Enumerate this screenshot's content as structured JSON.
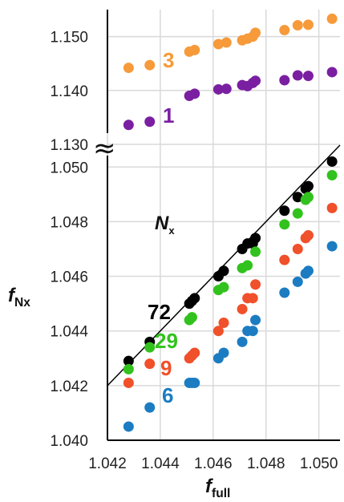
{
  "chart_data": [
    {
      "type": "scatter",
      "title": "",
      "xlabel": "",
      "ylabel": "",
      "xlim": [
        1.042,
        1.0508
      ],
      "ylim": [
        1.13,
        1.155
      ],
      "ytick_labels": [
        "1.130",
        "1.140",
        "1.150"
      ],
      "grid": true,
      "series": [
        {
          "name": "3",
          "color": "#F79A3A",
          "points": [
            [
              1.0428,
              1.1442
            ],
            [
              1.0436,
              1.1447
            ],
            [
              1.0451,
              1.1472
            ],
            [
              1.0453,
              1.1475
            ],
            [
              1.0462,
              1.1486
            ],
            [
              1.0465,
              1.1489
            ],
            [
              1.0471,
              1.1493
            ],
            [
              1.0473,
              1.1496
            ],
            [
              1.0475,
              1.15
            ],
            [
              1.0476,
              1.1507
            ],
            [
              1.0487,
              1.1512
            ],
            [
              1.0492,
              1.1521
            ],
            [
              1.0496,
              1.1522
            ],
            [
              1.0505,
              1.1533
            ]
          ]
        },
        {
          "name": "1",
          "color": "#7B1FA2",
          "points": [
            [
              1.0428,
              1.1336
            ],
            [
              1.0436,
              1.1342
            ],
            [
              1.0451,
              1.139
            ],
            [
              1.0453,
              1.1394
            ],
            [
              1.0462,
              1.1402
            ],
            [
              1.0465,
              1.1403
            ],
            [
              1.0471,
              1.141
            ],
            [
              1.0473,
              1.1408
            ],
            [
              1.0475,
              1.1414
            ],
            [
              1.0476,
              1.1418
            ],
            [
              1.0487,
              1.1419
            ],
            [
              1.0492,
              1.1428
            ],
            [
              1.0496,
              1.1427
            ],
            [
              1.0505,
              1.1434
            ]
          ]
        }
      ]
    },
    {
      "type": "scatter",
      "title": "",
      "xlabel": "f_full",
      "ylabel": "f_Nx",
      "xlim": [
        1.042,
        1.0508
      ],
      "ylim": [
        1.04,
        1.0508
      ],
      "xtick_labels": [
        "1.042",
        "1.044",
        "1.046",
        "1.048",
        "1.050"
      ],
      "ytick_labels": [
        "1.040",
        "1.042",
        "1.044",
        "1.046",
        "1.048",
        "1.050"
      ],
      "grid": true,
      "annotation": "N",
      "annotation_sub": "x",
      "reference_line": {
        "type": "y = x"
      },
      "series": [
        {
          "name": "72",
          "color": "#000000",
          "points": [
            [
              1.0428,
              1.0429
            ],
            [
              1.0436,
              1.0436
            ],
            [
              1.0451,
              1.045
            ],
            [
              1.0452,
              1.0451
            ],
            [
              1.0453,
              1.0452
            ],
            [
              1.0462,
              1.046
            ],
            [
              1.0464,
              1.0462
            ],
            [
              1.0471,
              1.047
            ],
            [
              1.0473,
              1.0472
            ],
            [
              1.0475,
              1.0472
            ],
            [
              1.0476,
              1.0474
            ],
            [
              1.0487,
              1.0484
            ],
            [
              1.0492,
              1.0489
            ],
            [
              1.0495,
              1.0492
            ],
            [
              1.0496,
              1.0493
            ],
            [
              1.0505,
              1.0502
            ]
          ]
        },
        {
          "name": "29",
          "color": "#32C21D",
          "points": [
            [
              1.0428,
              1.0426
            ],
            [
              1.0436,
              1.0434
            ],
            [
              1.0451,
              1.0444
            ],
            [
              1.0452,
              1.0445
            ],
            [
              1.0462,
              1.0455
            ],
            [
              1.0464,
              1.0456
            ],
            [
              1.0471,
              1.0463
            ],
            [
              1.0473,
              1.0464
            ],
            [
              1.0476,
              1.0469
            ],
            [
              1.0487,
              1.0479
            ],
            [
              1.0492,
              1.0483
            ],
            [
              1.0495,
              1.0488
            ],
            [
              1.0496,
              1.0489
            ],
            [
              1.0505,
              1.0497
            ]
          ]
        },
        {
          "name": "9",
          "color": "#F0502A",
          "points": [
            [
              1.0428,
              1.0421
            ],
            [
              1.0436,
              1.0428
            ],
            [
              1.0451,
              1.043
            ],
            [
              1.0452,
              1.0431
            ],
            [
              1.0453,
              1.0432
            ],
            [
              1.0462,
              1.044
            ],
            [
              1.0464,
              1.0443
            ],
            [
              1.0471,
              1.0448
            ],
            [
              1.0473,
              1.0452
            ],
            [
              1.0475,
              1.0452
            ],
            [
              1.0476,
              1.0457
            ],
            [
              1.0487,
              1.0466
            ],
            [
              1.0492,
              1.047
            ],
            [
              1.0495,
              1.0474
            ],
            [
              1.0496,
              1.0475
            ],
            [
              1.0505,
              1.0485
            ]
          ]
        },
        {
          "name": "6",
          "color": "#1B7CC2",
          "points": [
            [
              1.0428,
              1.0405
            ],
            [
              1.0436,
              1.0412
            ],
            [
              1.0451,
              1.0421
            ],
            [
              1.0452,
              1.0421
            ],
            [
              1.0453,
              1.0421
            ],
            [
              1.0462,
              1.043
            ],
            [
              1.0464,
              1.0432
            ],
            [
              1.0471,
              1.0436
            ],
            [
              1.0473,
              1.044
            ],
            [
              1.0475,
              1.044
            ],
            [
              1.0476,
              1.0444
            ],
            [
              1.0487,
              1.0454
            ],
            [
              1.0492,
              1.0458
            ],
            [
              1.0495,
              1.0461
            ],
            [
              1.0496,
              1.0462
            ],
            [
              1.0505,
              1.0471
            ]
          ]
        }
      ]
    }
  ],
  "axis_break_symbol": "≈"
}
